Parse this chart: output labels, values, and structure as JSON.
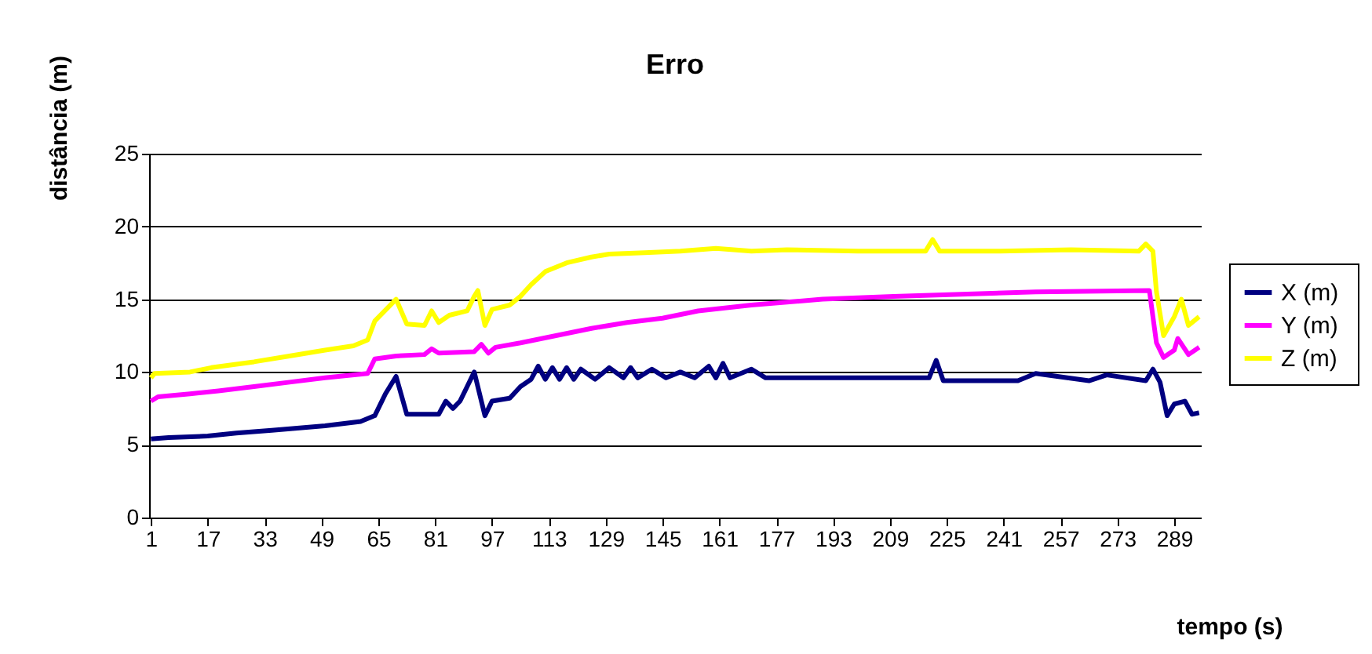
{
  "chart_data": {
    "type": "line",
    "title": "Erro",
    "xlabel": "tempo (s)",
    "ylabel": "distância (m)",
    "xlim": [
      0.5,
      296.5
    ],
    "xticks": [
      1,
      17,
      33,
      49,
      65,
      81,
      97,
      113,
      129,
      145,
      161,
      177,
      193,
      209,
      225,
      241,
      257,
      273,
      289
    ],
    "ylim": [
      0,
      25
    ],
    "yticks": [
      0,
      5,
      10,
      15,
      20,
      25
    ],
    "grid": "y",
    "legend": "right",
    "marker": "none",
    "line_style": "solid",
    "series": [
      {
        "name": "X (m)",
        "color": "#000080",
        "x": [
          1,
          6,
          17,
          25,
          35,
          50,
          60,
          64,
          67,
          70,
          73,
          82,
          84,
          86,
          88,
          90,
          92,
          95,
          97,
          102,
          105,
          108,
          110,
          112,
          114,
          116,
          118,
          120,
          122,
          126,
          130,
          134,
          136,
          138,
          142,
          146,
          150,
          154,
          158,
          160,
          162,
          164,
          170,
          174,
          190,
          200,
          220,
          222,
          224,
          245,
          250,
          265,
          270,
          281,
          283,
          285,
          287,
          289,
          292,
          294,
          296
        ],
        "values": [
          5.4,
          5.5,
          5.6,
          5.8,
          6.0,
          6.3,
          6.6,
          7.0,
          8.5,
          9.7,
          7.1,
          7.1,
          8.0,
          7.5,
          8.0,
          9.0,
          10.0,
          7.0,
          8.0,
          8.2,
          9.0,
          9.5,
          10.4,
          9.5,
          10.3,
          9.5,
          10.3,
          9.5,
          10.2,
          9.5,
          10.3,
          9.6,
          10.3,
          9.6,
          10.2,
          9.6,
          10.0,
          9.6,
          10.4,
          9.6,
          10.6,
          9.6,
          10.2,
          9.6,
          9.6,
          9.6,
          9.6,
          10.8,
          9.4,
          9.4,
          9.9,
          9.4,
          9.8,
          9.4,
          10.2,
          9.3,
          7.0,
          7.8,
          8.0,
          7.1,
          7.2
        ]
      },
      {
        "name": "Y  (m)",
        "color": "#ff00ff",
        "x": [
          1,
          3,
          12,
          20,
          30,
          40,
          50,
          62,
          64,
          70,
          78,
          80,
          82,
          92,
          94,
          96,
          98,
          105,
          115,
          125,
          135,
          145,
          155,
          170,
          190,
          210,
          250,
          282,
          284,
          286,
          289,
          290,
          293,
          296
        ],
        "values": [
          8.0,
          8.3,
          8.5,
          8.7,
          9.0,
          9.3,
          9.6,
          9.9,
          10.9,
          11.1,
          11.2,
          11.6,
          11.3,
          11.4,
          11.9,
          11.3,
          11.7,
          12.0,
          12.5,
          13.0,
          13.4,
          13.7,
          14.2,
          14.6,
          15.0,
          15.2,
          15.5,
          15.6,
          12.0,
          11.0,
          11.5,
          12.3,
          11.2,
          11.7
        ]
      },
      {
        "name": "Z (m)",
        "color": "#ffff00",
        "x": [
          1,
          2,
          12,
          18,
          30,
          40,
          50,
          58,
          62,
          64,
          68,
          70,
          73,
          78,
          80,
          82,
          85,
          90,
          92,
          93,
          95,
          97,
          102,
          105,
          108,
          112,
          118,
          125,
          130,
          140,
          150,
          160,
          170,
          180,
          200,
          219,
          221,
          223,
          240,
          260,
          279,
          281,
          283,
          284,
          286,
          289,
          291,
          293,
          296
        ],
        "values": [
          9.6,
          9.9,
          10.0,
          10.3,
          10.7,
          11.1,
          11.5,
          11.8,
          12.2,
          13.5,
          14.5,
          15.0,
          13.3,
          13.2,
          14.2,
          13.4,
          13.9,
          14.2,
          15.2,
          15.6,
          13.2,
          14.3,
          14.6,
          15.2,
          16.0,
          16.9,
          17.5,
          17.9,
          18.1,
          18.2,
          18.3,
          18.5,
          18.3,
          18.4,
          18.3,
          18.3,
          19.1,
          18.3,
          18.3,
          18.4,
          18.3,
          18.8,
          18.3,
          15.5,
          12.5,
          13.8,
          15.0,
          13.2,
          13.8
        ]
      }
    ]
  }
}
